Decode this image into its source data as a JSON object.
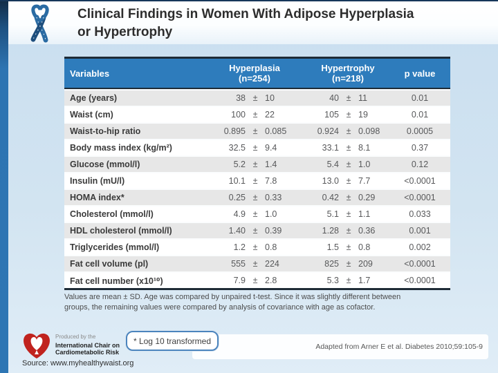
{
  "slide": {
    "title_line1": "Clinical Findings in Women With Adipose Hyperplasia",
    "title_line2": "or Hypertrophy"
  },
  "table": {
    "plus_minus": "±",
    "columns": {
      "variables": "Variables",
      "col1_line1": "Hyperplasia",
      "col1_line2": "(n=254)",
      "col2_line1": "Hypertrophy",
      "col2_line2": "(n=218)",
      "p": "p value"
    },
    "rows": [
      {
        "label": "Age (years)",
        "h_mean": "38",
        "h_sd": "10",
        "t_mean": "40",
        "t_sd": "11",
        "p": "0.01"
      },
      {
        "label": "Waist (cm)",
        "h_mean": "100",
        "h_sd": "22",
        "t_mean": "105",
        "t_sd": "19",
        "p": "0.01"
      },
      {
        "label": "Waist-to-hip ratio",
        "h_mean": "0.895",
        "h_sd": "0.085",
        "t_mean": "0.924",
        "t_sd": "0.098",
        "p": "0.0005"
      },
      {
        "label": "Body mass index (kg/m²)",
        "h_mean": "32.5",
        "h_sd": "9.4",
        "t_mean": "33.1",
        "t_sd": "8.1",
        "p": "0.37"
      },
      {
        "label": "Glucose (mmol/l)",
        "h_mean": "5.2",
        "h_sd": "1.4",
        "t_mean": "5.4",
        "t_sd": "1.0",
        "p": "0.12"
      },
      {
        "label": "Insulin (mU/l)",
        "h_mean": "10.1",
        "h_sd": "7.8",
        "t_mean": "13.0",
        "t_sd": "7.7",
        "p": "<0.0001"
      },
      {
        "label": "HOMA index*",
        "h_mean": "0.25",
        "h_sd": "0.33",
        "t_mean": "0.42",
        "t_sd": "0.29",
        "p": "<0.0001"
      },
      {
        "label": "Cholesterol (mmol/l)",
        "h_mean": "4.9",
        "h_sd": "1.0",
        "t_mean": "5.1",
        "t_sd": "1.1",
        "p": "0.033"
      },
      {
        "label": "HDL cholesterol (mmol/l)",
        "h_mean": "1.40",
        "h_sd": "0.39",
        "t_mean": "1.28",
        "t_sd": "0.36",
        "p": "0.001"
      },
      {
        "label": "Triglycerides (mmol/l)",
        "h_mean": "1.2",
        "h_sd": "0.8",
        "t_mean": "1.5",
        "t_sd": "0.8",
        "p": "0.002"
      },
      {
        "label": "Fat cell volume (pl)",
        "h_mean": "555",
        "h_sd": "224",
        "t_mean": "825",
        "t_sd": "209",
        "p": "<0.0001"
      },
      {
        "label": "Fat cell number (x10¹⁰)",
        "h_mean": "7.9",
        "h_sd": "2.8",
        "t_mean": "5.3",
        "t_sd": "1.7",
        "p": "<0.0001"
      }
    ]
  },
  "footnote": {
    "line1": "Values are mean ± SD. Age was compared by unpaired t-test. Since it was slightly different between",
    "line2": "groups, the remaining values were compared by analysis of covariance with age as cofactor."
  },
  "annotation": {
    "log_note": "* Log 10 transformed"
  },
  "logo": {
    "tagline": "Produced by the",
    "org_line1": "International Chair on",
    "org_line2": "Cardiometabolic Risk"
  },
  "citation": "Adapted from Arner E et al. Diabetes 2010;59:105-9",
  "source": "Source: www.myhealthywaist.org",
  "colors": {
    "header_bg": "#2E7CBC",
    "row_alt": "#E7E7E7",
    "accent_blue": "#2E76B4",
    "border_dark": "#1E2B36",
    "logo_red": "#C0231E",
    "background": "#D2E4F1"
  }
}
